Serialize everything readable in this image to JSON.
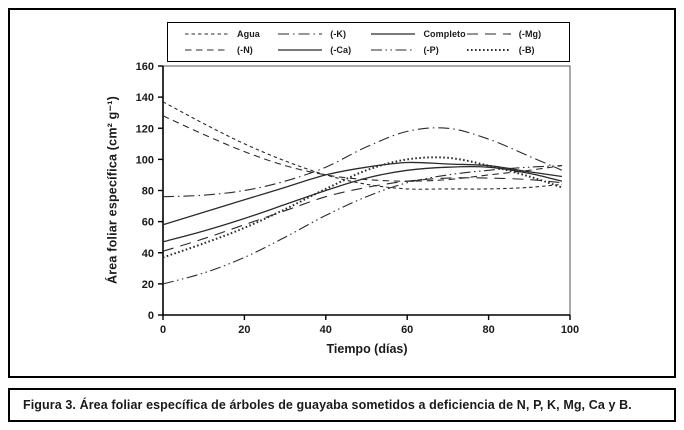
{
  "figure": {
    "caption": "Figura 3. Área foliar específica de árboles de guayaba sometidos a deficiencia de N, P, K, Mg, Ca y B."
  },
  "chart_data": {
    "type": "line",
    "title": "",
    "xlabel": "Tiempo (días)",
    "ylabel": "Área foliar específica (cm² g⁻¹)",
    "xlim": [
      0,
      100
    ],
    "ylim": [
      0,
      160
    ],
    "xticks": [
      0,
      20,
      40,
      60,
      80,
      100
    ],
    "yticks": [
      0,
      20,
      40,
      60,
      80,
      100,
      120,
      140,
      160
    ],
    "grid": false,
    "legend_position": "top-center",
    "line_color": "#2b2b2b",
    "x": [
      0,
      10,
      20,
      30,
      40,
      50,
      60,
      70,
      80,
      90,
      98
    ],
    "series": [
      {
        "name": "Agua",
        "dash": "3.5 3",
        "width": 1.1,
        "values": [
          137,
          123,
          110,
          99,
          90,
          84,
          81,
          81,
          81,
          82,
          84
        ]
      },
      {
        "name": "(-K)",
        "dash": "11 4 1.5 4",
        "width": 1.1,
        "values": [
          76,
          77,
          80,
          86,
          95,
          108,
          118,
          120,
          113,
          102,
          93
        ]
      },
      {
        "name": "Completo",
        "dash": "",
        "width": 1.3,
        "values": [
          58,
          66,
          74,
          82,
          90,
          95,
          98,
          97,
          96,
          92,
          89
        ]
      },
      {
        "name": "(-Mg)",
        "dash": "11 7",
        "width": 1.1,
        "values": [
          41,
          49,
          58,
          67,
          76,
          82,
          86,
          88,
          88,
          87,
          85
        ]
      },
      {
        "name": "(-N)",
        "dash": "6.5 4.5",
        "width": 1.1,
        "values": [
          128,
          116,
          105,
          96,
          90,
          87,
          86,
          87,
          90,
          93,
          96
        ]
      },
      {
        "name": "(-Ca)",
        "dash": "",
        "width": 1.3,
        "values": [
          47,
          54,
          62,
          71,
          80,
          88,
          93,
          95,
          95,
          91,
          86
        ]
      },
      {
        "name": "(-P)",
        "dash": "11 3.5 1.5 3.5 1.5 3.5",
        "width": 1.1,
        "values": [
          20,
          27,
          37,
          50,
          64,
          76,
          85,
          90,
          93,
          95,
          96
        ]
      },
      {
        "name": "(-B)",
        "dash": "1.6 2.4",
        "width": 2.0,
        "values": [
          37,
          46,
          56,
          68,
          81,
          93,
          100,
          101,
          96,
          89,
          82
        ]
      }
    ]
  }
}
